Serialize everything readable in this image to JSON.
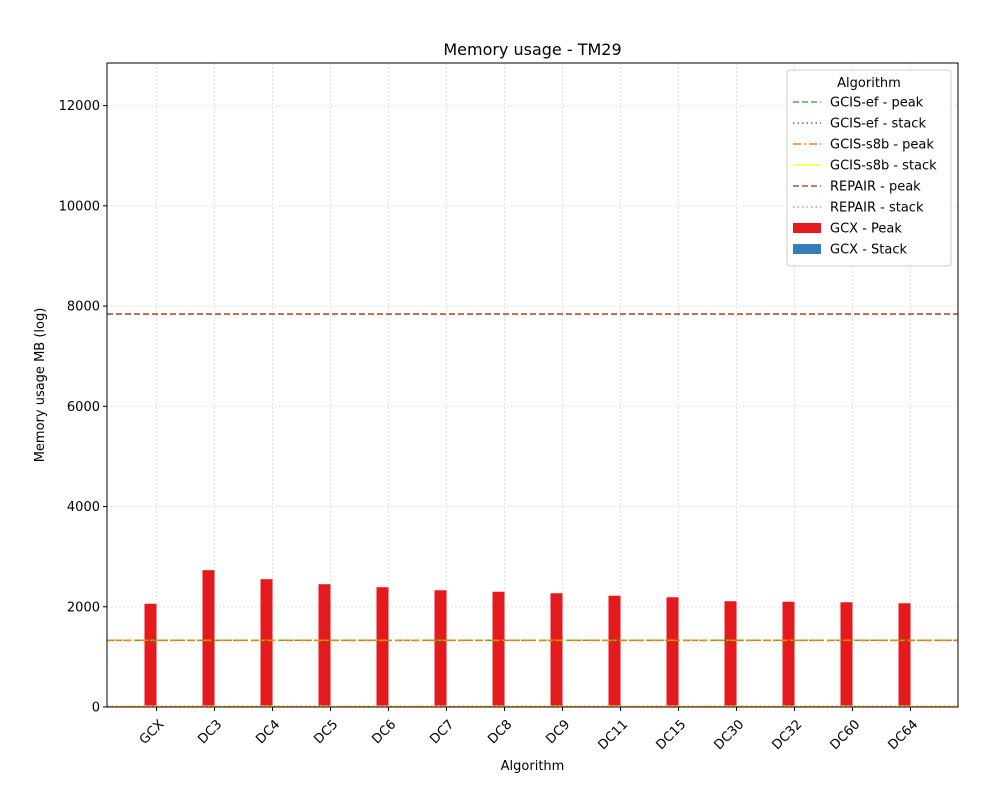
{
  "chart_data": {
    "type": "bar",
    "title": "Memory usage -  TM29",
    "xlabel": "Algorithm",
    "ylabel": "Memory usage MB (log)",
    "ylim": [
      0,
      12850
    ],
    "yticks": [
      0,
      2000,
      4000,
      6000,
      8000,
      10000,
      12000
    ],
    "grid": true,
    "categories": [
      "GCX",
      "DC3",
      "DC4",
      "DC5",
      "DC6",
      "DC7",
      "DC8",
      "DC9",
      "DC11",
      "DC15",
      "DC30",
      "DC32",
      "DC60",
      "DC64"
    ],
    "series": [
      {
        "name": "GCX - Peak",
        "color": "#e41a1c",
        "values": [
          2060,
          2730,
          2550,
          2450,
          2390,
          2330,
          2300,
          2270,
          2220,
          2190,
          2110,
          2100,
          2090,
          2070
        ]
      },
      {
        "name": "GCX - Stack",
        "color": "#377eb8",
        "values": [
          0,
          0,
          0,
          0,
          0,
          0,
          0,
          0,
          0,
          0,
          0,
          0,
          0,
          0
        ]
      }
    ],
    "reference_lines": [
      {
        "name": "GCIS-ef  - peak",
        "value": 1330,
        "color": "#4daf4a",
        "style": "dashed"
      },
      {
        "name": "GCIS-ef - stack",
        "value": 15,
        "color": "#984ea3",
        "style": "dotted"
      },
      {
        "name": "GCIS-s8b  - peak",
        "value": 1330,
        "color": "#ff7f00",
        "style": "dashdot"
      },
      {
        "name": "GCIS-s8b - stack",
        "value": 15,
        "color": "#ffff33",
        "style": "solid"
      },
      {
        "name": "REPAIR  - peak",
        "value": 7840,
        "color": "#a65628",
        "style": "dashed"
      },
      {
        "name": "REPAIR - stack",
        "value": 15,
        "color": "#f781bf",
        "style": "dotted"
      }
    ],
    "legend": {
      "title": "Algorithm",
      "placement": "top-right"
    }
  }
}
